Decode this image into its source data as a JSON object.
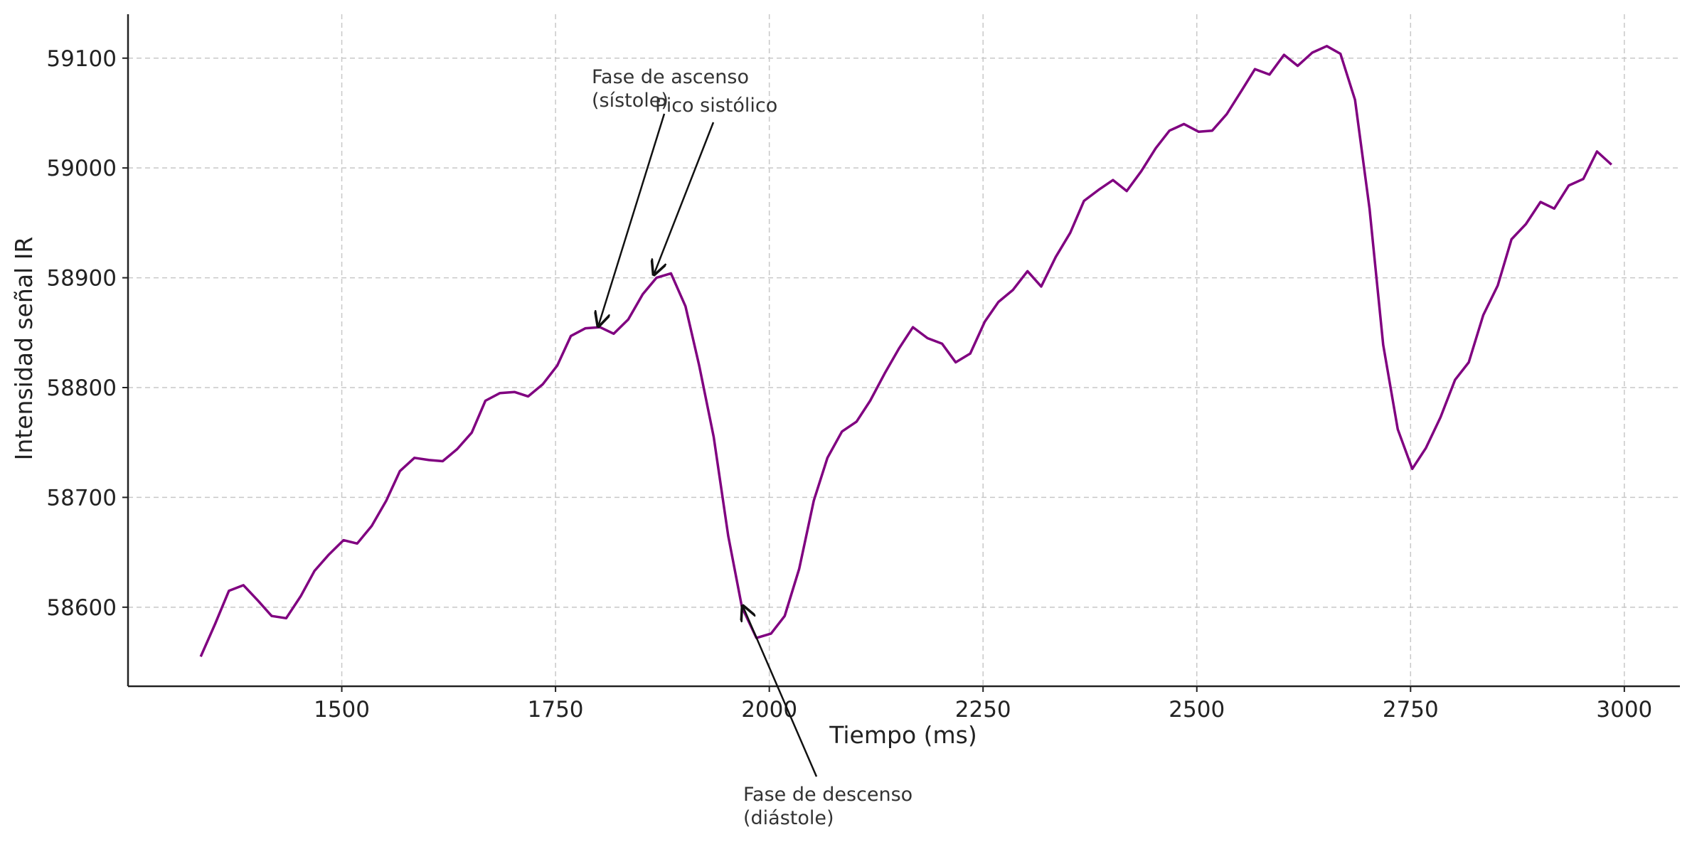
{
  "chart_data": {
    "type": "line",
    "xlabel": "Tiempo (ms)",
    "ylabel": "Intensidad señal IR",
    "xlim": [
      1250,
      3065
    ],
    "ylim": [
      58528,
      59140
    ],
    "xticks": [
      1500,
      1750,
      2000,
      2250,
      2500,
      2750,
      3000
    ],
    "yticks": [
      58600,
      58700,
      58800,
      58900,
      59000,
      59100
    ],
    "grid": true,
    "series": [
      {
        "color": "#800080",
        "x": [
          1335,
          1352,
          1368,
          1385,
          1402,
          1418,
          1435,
          1452,
          1468,
          1485,
          1502,
          1518,
          1535,
          1552,
          1568,
          1585,
          1602,
          1618,
          1635,
          1652,
          1668,
          1685,
          1702,
          1718,
          1735,
          1752,
          1768,
          1785,
          1802,
          1818,
          1835,
          1852,
          1868,
          1885,
          1902,
          1918,
          1935,
          1952,
          1968,
          1985,
          2002,
          2018,
          2035,
          2052,
          2068,
          2085,
          2102,
          2118,
          2135,
          2152,
          2168,
          2185,
          2202,
          2218,
          2235,
          2252,
          2268,
          2285,
          2302,
          2318,
          2335,
          2352,
          2368,
          2385,
          2402,
          2418,
          2435,
          2452,
          2468,
          2485,
          2502,
          2518,
          2535,
          2552,
          2568,
          2585,
          2602,
          2618,
          2635,
          2652,
          2668,
          2685,
          2702,
          2718,
          2735,
          2752,
          2768,
          2785,
          2802,
          2818,
          2835,
          2852,
          2868,
          2885,
          2902,
          2918,
          2935,
          2952,
          2968,
          2985
        ],
        "values": [
          58555,
          58585,
          58615,
          58620,
          58606,
          58592,
          58590,
          58610,
          58633,
          58648,
          58661,
          58658,
          58674,
          58697,
          58724,
          58736,
          58734,
          58733,
          58744,
          58759,
          58788,
          58795,
          58796,
          58792,
          58803,
          58820,
          58847,
          58854,
          58855,
          58849,
          58862,
          58885,
          58900,
          58904,
          58874,
          58820,
          58755,
          58665,
          58600,
          58572,
          58576,
          58592,
          58635,
          58697,
          58736,
          58760,
          58769,
          58788,
          58813,
          58836,
          58855,
          58845,
          58840,
          58823,
          58831,
          58860,
          58878,
          58889,
          58906,
          58892,
          58919,
          58941,
          58970,
          58980,
          58989,
          58979,
          58997,
          59018,
          59034,
          59040,
          59033,
          59034,
          59049,
          59070,
          59090,
          59085,
          59103,
          59093,
          59105,
          59111,
          59104,
          59062,
          58963,
          58839,
          58762,
          58726,
          58745,
          58773,
          58807,
          58823,
          58866,
          58893,
          58935,
          58949,
          58969,
          58963,
          58984,
          58990,
          59015,
          59003
        ]
      }
    ],
    "annotations": [
      {
        "lines": [
          "Fase de ascenso",
          "(sístole)"
        ],
        "target": [
          1800,
          58856
        ]
      },
      {
        "lines": [
          "Pico sistólico"
        ],
        "target": [
          1865,
          58903
        ]
      },
      {
        "lines": [
          "Fase de descenso",
          "(diástole)"
        ],
        "target": [
          1969,
          58601
        ]
      }
    ]
  }
}
